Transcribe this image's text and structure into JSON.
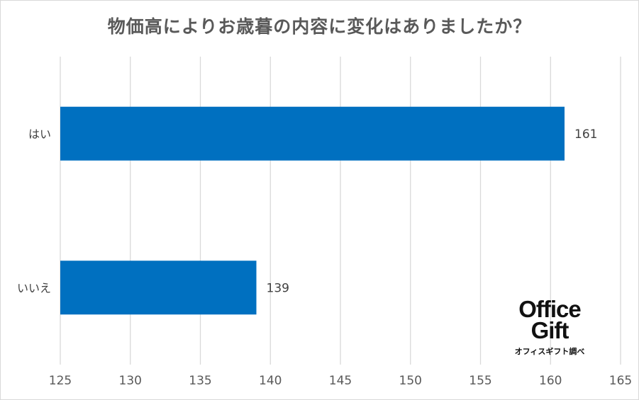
{
  "chart_data": {
    "type": "bar",
    "orientation": "horizontal",
    "title": "物価高によりお歳暮の内容に変化はありましたか？",
    "categories": [
      "はい",
      "いいえ"
    ],
    "values": [
      161,
      139
    ],
    "data_labels": [
      "161",
      "139"
    ],
    "xlim": [
      125,
      165
    ],
    "x_ticks": [
      125,
      130,
      135,
      140,
      145,
      150,
      155,
      160,
      165
    ],
    "x_tick_labels": [
      "125",
      "130",
      "135",
      "140",
      "145",
      "150",
      "155",
      "160",
      "165"
    ],
    "grid": true,
    "bar_color": "#0070C0"
  },
  "logo": {
    "line1": "Office",
    "line2": "Gift",
    "caption": "オフィスギフト調べ"
  }
}
